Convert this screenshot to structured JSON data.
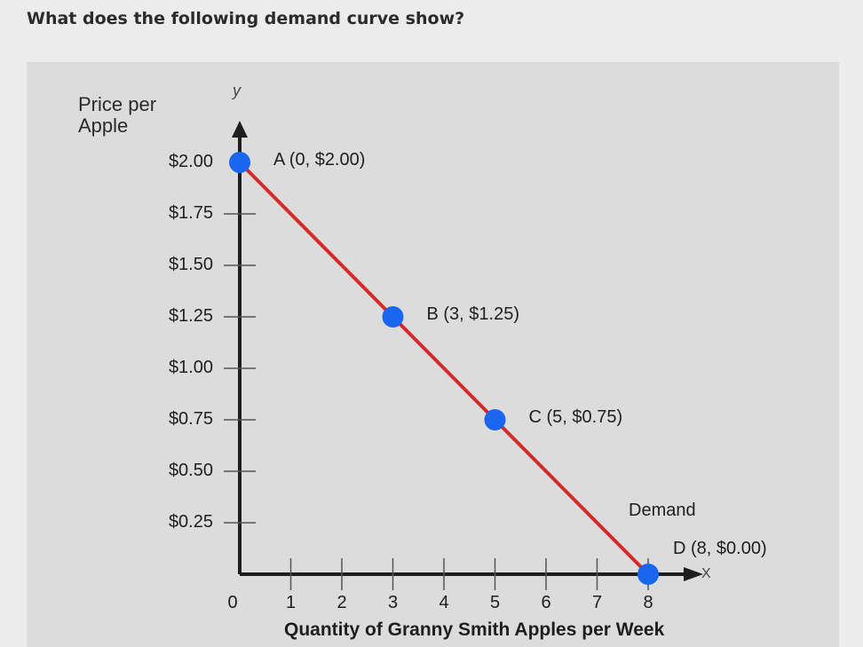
{
  "question": "What does the following demand curve show?",
  "chart_data": {
    "type": "line",
    "ylabel": "Price per Apple",
    "xlabel": "Quantity of Granny Smith Apples per Week",
    "y_axis_name": "y",
    "x_axis_name": "X",
    "xlim": [
      0,
      8
    ],
    "ylim": [
      0,
      2.0
    ],
    "x_ticks": [
      "0",
      "1",
      "2",
      "3",
      "4",
      "5",
      "6",
      "7",
      "8"
    ],
    "y_ticks": [
      {
        "value": 2.0,
        "label": "$2.00"
      },
      {
        "value": 1.75,
        "label": "$1.75"
      },
      {
        "value": 1.5,
        "label": "$1.50"
      },
      {
        "value": 1.25,
        "label": "$1.25"
      },
      {
        "value": 1.0,
        "label": "$1.00"
      },
      {
        "value": 0.75,
        "label": "$0.75"
      },
      {
        "value": 0.5,
        "label": "$0.50"
      },
      {
        "value": 0.25,
        "label": "$0.25"
      }
    ],
    "series": [
      {
        "name": "Demand",
        "color": "#d42a2a",
        "points": [
          {
            "x": 0,
            "y": 2.0,
            "label": "A (0, $2.00)"
          },
          {
            "x": 3,
            "y": 1.25,
            "label": "B (3, $1.25)"
          },
          {
            "x": 5,
            "y": 0.75,
            "label": "C (5, $0.75)"
          },
          {
            "x": 8,
            "y": 0.0,
            "label": "D (8, $0.00)"
          }
        ]
      }
    ],
    "point_color": "#1a66f0",
    "grid": false
  }
}
